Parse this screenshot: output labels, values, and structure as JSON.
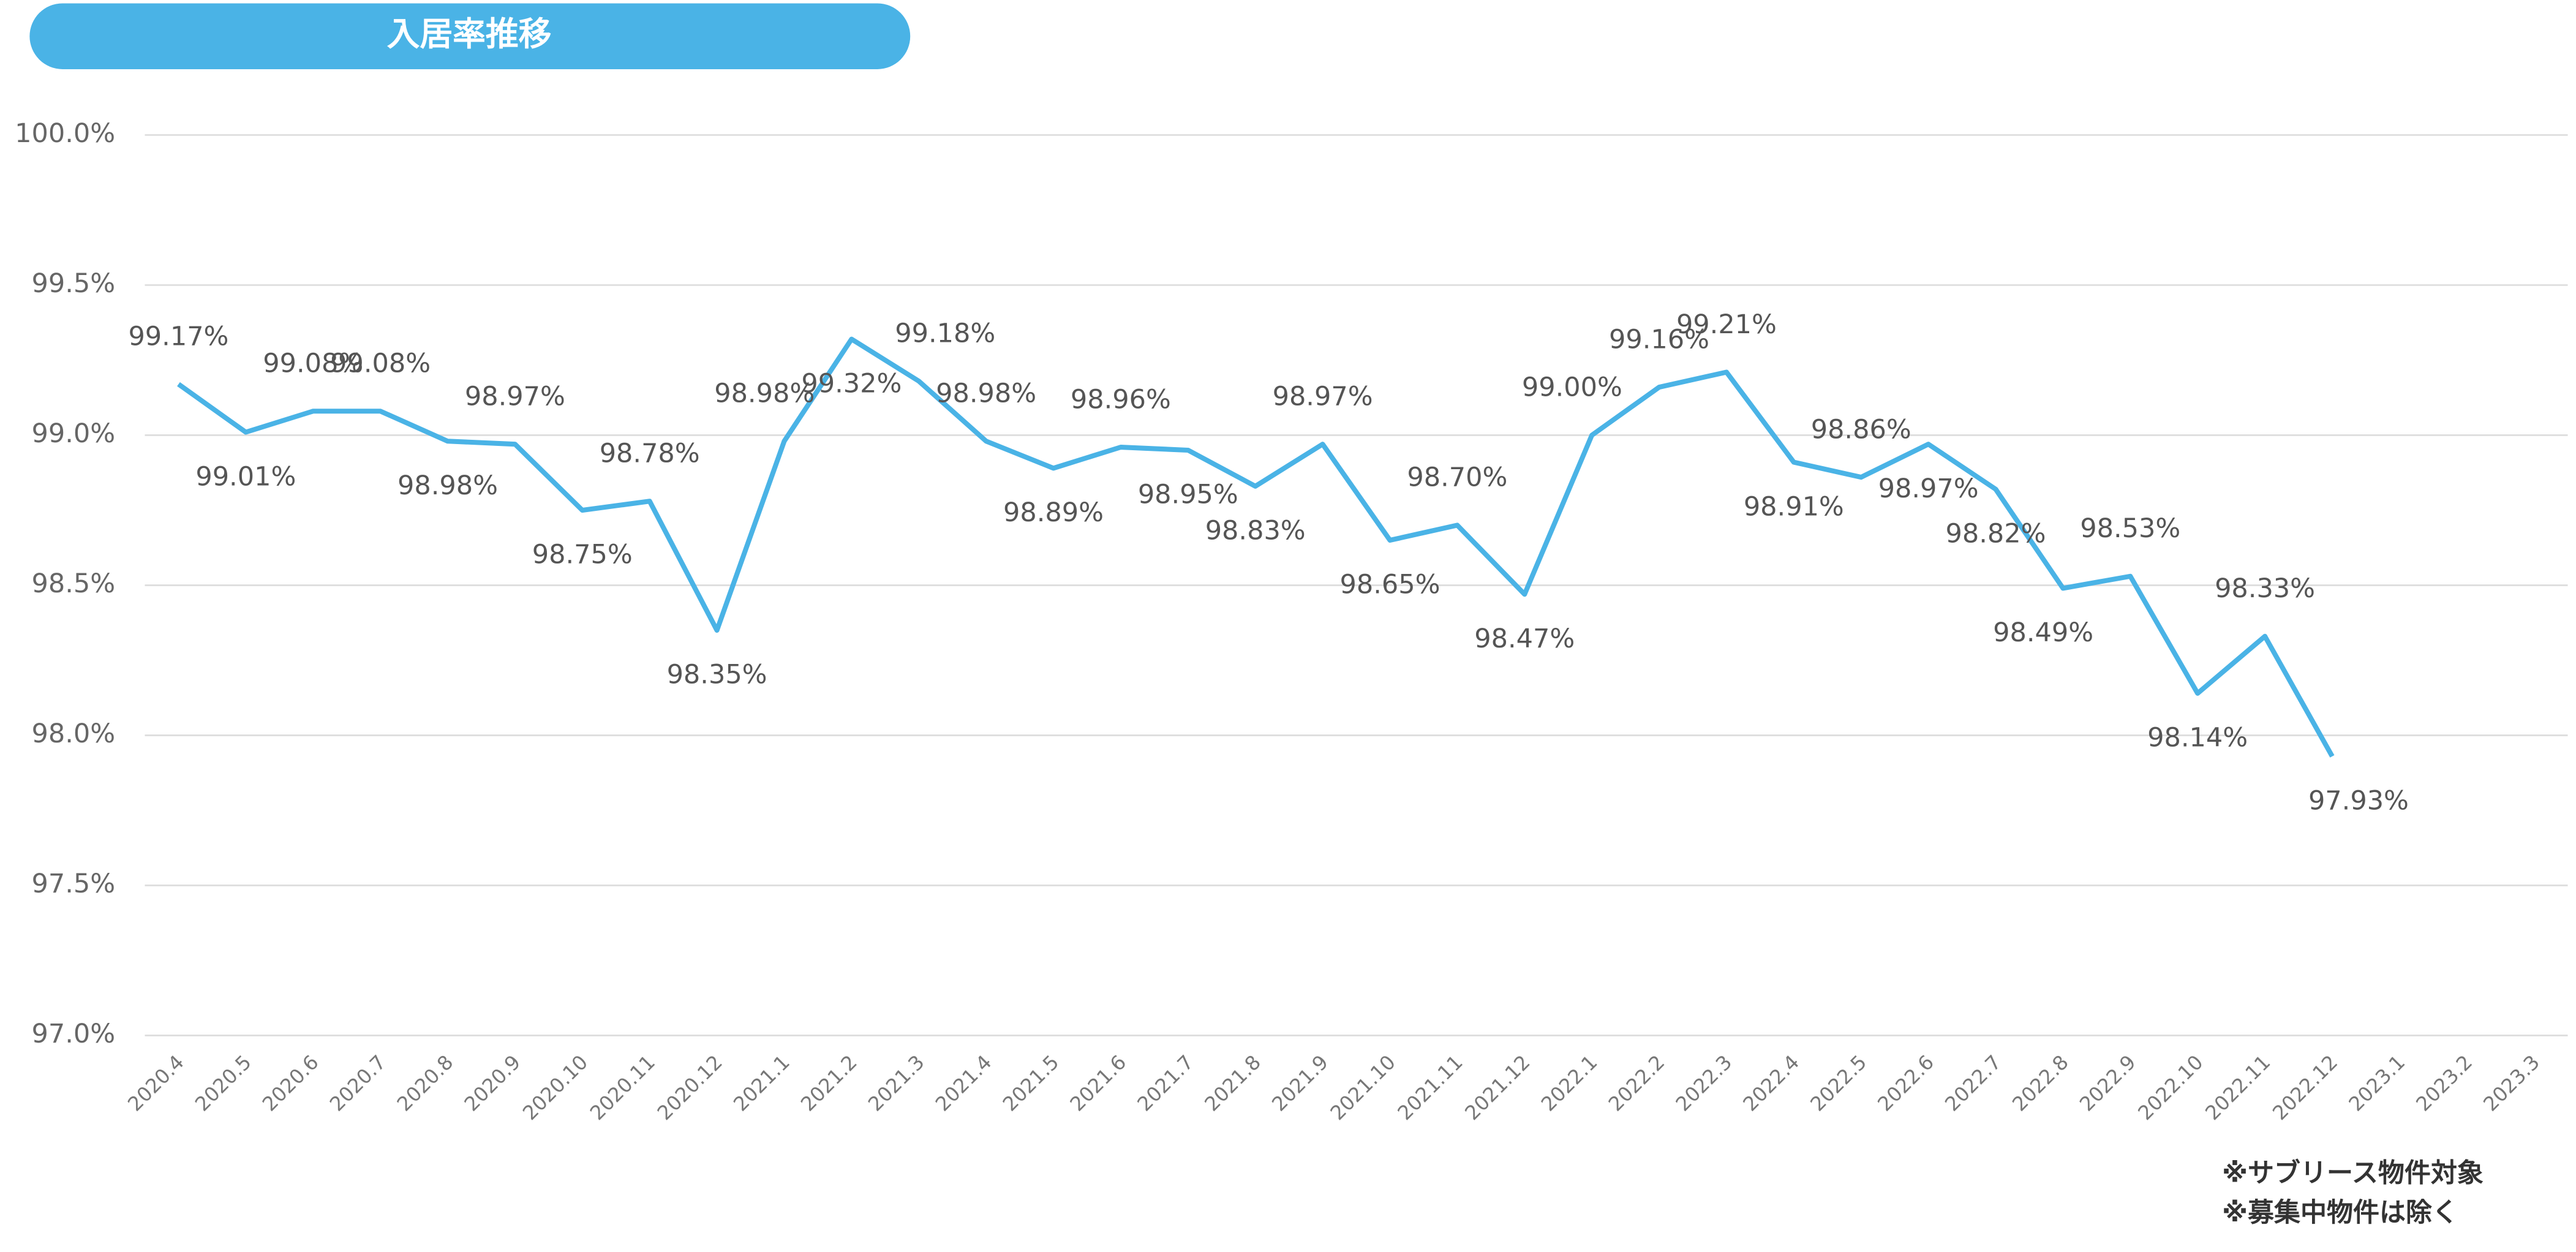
{
  "chart_data": {
    "type": "line",
    "title": "入居率推移",
    "categories": [
      "2020.4",
      "2020.5",
      "2020.6",
      "2020.7",
      "2020.8",
      "2020.9",
      "2020.10",
      "2020.11",
      "2020.12",
      "2021.1",
      "2021.2",
      "2021.3",
      "2021.4",
      "2021.5",
      "2021.6",
      "2021.7",
      "2021.8",
      "2021.9",
      "2021.10",
      "2021.11",
      "2021.12",
      "2022.1",
      "2022.2",
      "2022.3",
      "2022.4",
      "2022.5",
      "2022.6",
      "2022.7",
      "2022.8",
      "2022.9",
      "2022.10",
      "2022.11",
      "2022.12",
      "2023.1",
      "2023.2",
      "2023.3"
    ],
    "values": [
      99.17,
      99.01,
      99.08,
      99.08,
      98.98,
      98.97,
      98.75,
      98.78,
      98.35,
      98.98,
      99.32,
      99.18,
      98.98,
      98.89,
      98.96,
      98.95,
      98.83,
      98.97,
      98.65,
      98.7,
      98.47,
      99.0,
      99.16,
      99.21,
      98.91,
      98.86,
      98.97,
      98.82,
      98.49,
      98.53,
      98.14,
      98.33,
      97.93,
      null,
      null,
      null
    ],
    "value_labels": [
      "99.17%",
      "99.01%",
      "99.08%",
      "99.08%",
      "98.98%",
      "98.97%",
      "98.75%",
      "98.78%",
      "98.35%",
      "98.98%",
      "99.32%",
      "99.18%",
      "98.98%",
      "98.89%",
      "98.96%",
      "98.95%",
      "98.83%",
      "98.97%",
      "98.65%",
      "98.70%",
      "98.47%",
      "99.00%",
      "99.16%",
      "99.21%",
      "98.91%",
      "98.86%",
      "98.97%",
      "98.82%",
      "98.49%",
      "98.53%",
      "98.14%",
      "98.33%",
      "97.93%",
      null,
      null,
      null
    ],
    "color": "#4ab3e6",
    "ylim": [
      97.0,
      100.0
    ],
    "yticks": [
      {
        "value": 97.0,
        "label": "97.0%"
      },
      {
        "value": 97.5,
        "label": "97.5%"
      },
      {
        "value": 98.0,
        "label": "98.0%"
      },
      {
        "value": 98.5,
        "label": "98.5%"
      },
      {
        "value": 99.0,
        "label": "99.0%"
      },
      {
        "value": 99.5,
        "label": "99.5%"
      },
      {
        "value": 100.0,
        "label": "100.0%"
      }
    ],
    "grid": true,
    "notes": [
      "※サブリース物件対象",
      "※募集中物件は除く"
    ]
  }
}
